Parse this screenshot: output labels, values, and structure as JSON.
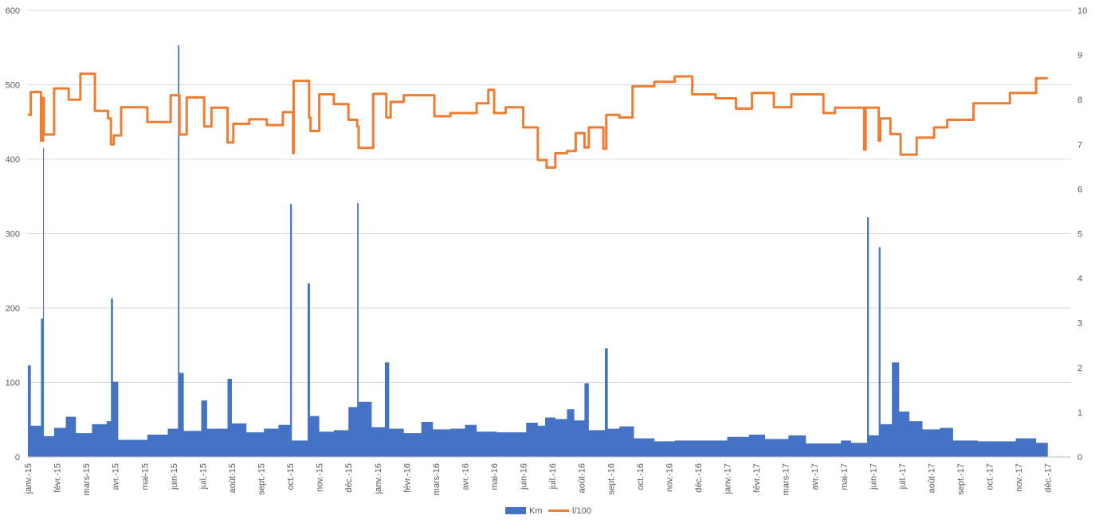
{
  "chart_data": {
    "type": "area",
    "title": "",
    "grid": true,
    "legend_placement": "bottom",
    "y_left": {
      "min": 0,
      "max": 600,
      "ticks": [
        0,
        100,
        200,
        300,
        400,
        500,
        600
      ]
    },
    "y_right": {
      "min": 0,
      "max": 10,
      "ticks": [
        0,
        1,
        2,
        3,
        4,
        5,
        6,
        7,
        8,
        9,
        10
      ]
    },
    "x_months": [
      "janv.-15",
      "févr.-15",
      "mars-15",
      "avr.-15",
      "mai-15",
      "juin-15",
      "juil.-15",
      "août-15",
      "sept.-15",
      "oct.-15",
      "nov.-15",
      "déc.-15",
      "janv.-16",
      "févr.-16",
      "mars-16",
      "avr.-16",
      "mai-16",
      "juin-16",
      "juil.-16",
      "août-16",
      "sept.-16",
      "oct.-16",
      "nov.-16",
      "déc.-16",
      "janv.-17",
      "févr.-17",
      "mars-17",
      "avr.-17",
      "mai-17",
      "juin-17",
      "juil.-17",
      "août-17",
      "sept.-17",
      "oct.-17",
      "nov.-17",
      "déc.-17"
    ],
    "x_max_month": 35.8,
    "series": [
      {
        "name": "Km",
        "type": "area",
        "axis": "left",
        "color": "#4472C4",
        "points": [
          [
            0,
            123
          ],
          [
            0.1,
            123
          ],
          [
            0.1,
            42
          ],
          [
            0.45,
            42
          ],
          [
            0.45,
            186
          ],
          [
            0.52,
            186
          ],
          [
            0.52,
            415
          ],
          [
            0.55,
            415
          ],
          [
            0.55,
            28
          ],
          [
            0.9,
            28
          ],
          [
            0.9,
            39
          ],
          [
            1.3,
            39
          ],
          [
            1.3,
            54
          ],
          [
            1.65,
            54
          ],
          [
            1.65,
            32
          ],
          [
            2.2,
            32
          ],
          [
            2.2,
            44
          ],
          [
            2.7,
            44
          ],
          [
            2.7,
            48
          ],
          [
            2.85,
            48
          ],
          [
            2.85,
            213
          ],
          [
            2.92,
            213
          ],
          [
            2.92,
            101
          ],
          [
            3.1,
            101
          ],
          [
            3.1,
            23
          ],
          [
            4.1,
            23
          ],
          [
            4.1,
            30
          ],
          [
            4.8,
            30
          ],
          [
            4.8,
            38
          ],
          [
            5.15,
            38
          ],
          [
            5.15,
            553
          ],
          [
            5.2,
            553
          ],
          [
            5.2,
            113
          ],
          [
            5.35,
            113
          ],
          [
            5.35,
            35
          ],
          [
            5.95,
            35
          ],
          [
            5.95,
            76
          ],
          [
            6.15,
            76
          ],
          [
            6.15,
            38
          ],
          [
            6.85,
            38
          ],
          [
            6.85,
            105
          ],
          [
            7.0,
            105
          ],
          [
            7.0,
            45
          ],
          [
            7.5,
            45
          ],
          [
            7.5,
            33
          ],
          [
            8.1,
            33
          ],
          [
            8.1,
            38
          ],
          [
            8.6,
            38
          ],
          [
            8.6,
            43
          ],
          [
            9.0,
            43
          ],
          [
            9.0,
            340
          ],
          [
            9.06,
            340
          ],
          [
            9.06,
            22
          ],
          [
            9.6,
            22
          ],
          [
            9.6,
            233
          ],
          [
            9.68,
            233
          ],
          [
            9.68,
            55
          ],
          [
            10.0,
            55
          ],
          [
            10.0,
            34
          ],
          [
            10.5,
            34
          ],
          [
            10.5,
            36
          ],
          [
            11.0,
            36
          ],
          [
            11.0,
            67
          ],
          [
            11.3,
            67
          ],
          [
            11.3,
            341
          ],
          [
            11.35,
            341
          ],
          [
            11.35,
            74
          ],
          [
            11.8,
            74
          ],
          [
            11.8,
            40
          ],
          [
            12.25,
            40
          ],
          [
            12.25,
            127
          ],
          [
            12.4,
            127
          ],
          [
            12.4,
            38
          ],
          [
            12.9,
            38
          ],
          [
            12.9,
            32
          ],
          [
            13.5,
            32
          ],
          [
            13.5,
            47
          ],
          [
            13.9,
            47
          ],
          [
            13.9,
            37
          ],
          [
            14.5,
            37
          ],
          [
            14.5,
            38
          ],
          [
            15.0,
            38
          ],
          [
            15.0,
            43
          ],
          [
            15.4,
            43
          ],
          [
            15.4,
            34
          ],
          [
            16.1,
            34
          ],
          [
            16.1,
            33
          ],
          [
            17.1,
            33
          ],
          [
            17.1,
            46
          ],
          [
            17.5,
            46
          ],
          [
            17.5,
            42
          ],
          [
            17.75,
            42
          ],
          [
            17.75,
            53
          ],
          [
            18.1,
            53
          ],
          [
            18.1,
            51
          ],
          [
            18.5,
            51
          ],
          [
            18.5,
            64
          ],
          [
            18.75,
            64
          ],
          [
            18.75,
            49
          ],
          [
            19.1,
            49
          ],
          [
            19.1,
            99
          ],
          [
            19.25,
            99
          ],
          [
            19.25,
            36
          ],
          [
            19.8,
            36
          ],
          [
            19.8,
            146
          ],
          [
            19.9,
            146
          ],
          [
            19.9,
            38
          ],
          [
            20.3,
            38
          ],
          [
            20.3,
            41
          ],
          [
            20.8,
            41
          ],
          [
            20.8,
            25
          ],
          [
            21.5,
            25
          ],
          [
            21.5,
            21
          ],
          [
            22.2,
            21
          ],
          [
            22.2,
            22
          ],
          [
            24.0,
            22
          ],
          [
            24.0,
            27
          ],
          [
            24.75,
            27
          ],
          [
            24.75,
            30
          ],
          [
            25.3,
            30
          ],
          [
            25.3,
            24
          ],
          [
            26.1,
            24
          ],
          [
            26.1,
            29
          ],
          [
            26.7,
            29
          ],
          [
            26.7,
            18
          ],
          [
            27.9,
            18
          ],
          [
            27.9,
            22
          ],
          [
            28.25,
            22
          ],
          [
            28.25,
            19
          ],
          [
            28.8,
            19
          ],
          [
            28.8,
            322
          ],
          [
            28.86,
            322
          ],
          [
            28.86,
            29
          ],
          [
            29.2,
            29
          ],
          [
            29.2,
            282
          ],
          [
            29.26,
            282
          ],
          [
            29.26,
            44
          ],
          [
            29.65,
            44
          ],
          [
            29.65,
            127
          ],
          [
            29.9,
            127
          ],
          [
            29.9,
            61
          ],
          [
            30.25,
            61
          ],
          [
            30.25,
            48
          ],
          [
            30.7,
            48
          ],
          [
            30.7,
            37
          ],
          [
            31.3,
            37
          ],
          [
            31.3,
            39
          ],
          [
            31.75,
            39
          ],
          [
            31.75,
            22
          ],
          [
            32.6,
            22
          ],
          [
            32.6,
            21
          ],
          [
            33.9,
            21
          ],
          [
            33.9,
            25
          ],
          [
            34.6,
            25
          ],
          [
            34.6,
            19
          ],
          [
            35.0,
            19
          ]
        ]
      },
      {
        "name": "l/100",
        "type": "line",
        "axis": "right",
        "color": "#ED7D31",
        "points": [
          [
            0,
            7.66
          ],
          [
            0.1,
            7.66
          ],
          [
            0.1,
            8.17
          ],
          [
            0.45,
            8.17
          ],
          [
            0.45,
            7.08
          ],
          [
            0.52,
            7.08
          ],
          [
            0.52,
            8.04
          ],
          [
            0.55,
            8.04
          ],
          [
            0.55,
            7.22
          ],
          [
            0.9,
            7.22
          ],
          [
            0.9,
            8.25
          ],
          [
            1.4,
            8.25
          ],
          [
            1.4,
            8.0
          ],
          [
            1.8,
            8.0
          ],
          [
            1.8,
            8.58
          ],
          [
            2.3,
            8.58
          ],
          [
            2.3,
            7.75
          ],
          [
            2.75,
            7.75
          ],
          [
            2.75,
            7.58
          ],
          [
            2.85,
            7.58
          ],
          [
            2.85,
            7.0
          ],
          [
            2.95,
            7.0
          ],
          [
            2.95,
            7.2
          ],
          [
            3.2,
            7.2
          ],
          [
            3.2,
            7.83
          ],
          [
            4.1,
            7.83
          ],
          [
            4.1,
            7.5
          ],
          [
            4.9,
            7.5
          ],
          [
            4.9,
            8.1
          ],
          [
            5.2,
            8.1
          ],
          [
            5.2,
            7.22
          ],
          [
            5.45,
            7.22
          ],
          [
            5.45,
            8.05
          ],
          [
            6.05,
            8.05
          ],
          [
            6.05,
            7.4
          ],
          [
            6.3,
            7.4
          ],
          [
            6.3,
            7.82
          ],
          [
            6.85,
            7.82
          ],
          [
            6.85,
            7.04
          ],
          [
            7.05,
            7.04
          ],
          [
            7.05,
            7.46
          ],
          [
            7.6,
            7.46
          ],
          [
            7.6,
            7.56
          ],
          [
            8.2,
            7.56
          ],
          [
            8.2,
            7.43
          ],
          [
            8.75,
            7.43
          ],
          [
            8.75,
            7.72
          ],
          [
            9.1,
            7.72
          ],
          [
            9.1,
            6.8
          ],
          [
            9.12,
            6.8
          ],
          [
            9.12,
            8.42
          ],
          [
            9.65,
            8.42
          ],
          [
            9.65,
            7.6
          ],
          [
            9.7,
            7.6
          ],
          [
            9.7,
            7.3
          ],
          [
            10.0,
            7.3
          ],
          [
            10.0,
            8.12
          ],
          [
            10.5,
            8.12
          ],
          [
            10.5,
            7.9
          ],
          [
            11.0,
            7.9
          ],
          [
            11.0,
            7.55
          ],
          [
            11.3,
            7.55
          ],
          [
            11.3,
            7.4
          ],
          [
            11.35,
            7.4
          ],
          [
            11.35,
            6.92
          ],
          [
            11.85,
            6.92
          ],
          [
            11.85,
            8.13
          ],
          [
            12.3,
            8.13
          ],
          [
            12.3,
            7.6
          ],
          [
            12.45,
            7.6
          ],
          [
            12.45,
            7.95
          ],
          [
            12.9,
            7.95
          ],
          [
            12.9,
            8.1
          ],
          [
            13.95,
            8.1
          ],
          [
            13.95,
            7.63
          ],
          [
            14.5,
            7.63
          ],
          [
            14.5,
            7.7
          ],
          [
            15.4,
            7.7
          ],
          [
            15.4,
            7.92
          ],
          [
            15.8,
            7.92
          ],
          [
            15.8,
            8.22
          ],
          [
            16.0,
            8.22
          ],
          [
            16.0,
            7.7
          ],
          [
            16.4,
            7.7
          ],
          [
            16.4,
            7.83
          ],
          [
            17.0,
            7.83
          ],
          [
            17.0,
            7.38
          ],
          [
            17.5,
            7.38
          ],
          [
            17.5,
            6.65
          ],
          [
            17.8,
            6.65
          ],
          [
            17.8,
            6.48
          ],
          [
            18.1,
            6.48
          ],
          [
            18.1,
            6.8
          ],
          [
            18.5,
            6.8
          ],
          [
            18.5,
            6.85
          ],
          [
            18.8,
            6.85
          ],
          [
            18.8,
            7.25
          ],
          [
            19.1,
            7.25
          ],
          [
            19.1,
            6.93
          ],
          [
            19.25,
            6.93
          ],
          [
            19.25,
            7.38
          ],
          [
            19.75,
            7.38
          ],
          [
            19.75,
            6.9
          ],
          [
            19.85,
            6.9
          ],
          [
            19.85,
            7.66
          ],
          [
            20.3,
            7.66
          ],
          [
            20.3,
            7.6
          ],
          [
            20.75,
            7.6
          ],
          [
            20.75,
            8.3
          ],
          [
            21.5,
            8.3
          ],
          [
            21.5,
            8.4
          ],
          [
            22.2,
            8.4
          ],
          [
            22.2,
            8.52
          ],
          [
            22.8,
            8.52
          ],
          [
            22.8,
            8.12
          ],
          [
            23.6,
            8.12
          ],
          [
            23.6,
            8.03
          ],
          [
            24.3,
            8.03
          ],
          [
            24.3,
            7.8
          ],
          [
            24.85,
            7.8
          ],
          [
            24.85,
            8.15
          ],
          [
            25.6,
            8.15
          ],
          [
            25.6,
            7.83
          ],
          [
            26.2,
            7.83
          ],
          [
            26.2,
            8.12
          ],
          [
            27.3,
            8.12
          ],
          [
            27.3,
            7.7
          ],
          [
            27.7,
            7.7
          ],
          [
            27.7,
            7.82
          ],
          [
            28.7,
            7.82
          ],
          [
            28.7,
            6.88
          ],
          [
            28.75,
            6.88
          ],
          [
            28.75,
            7.82
          ],
          [
            29.2,
            7.82
          ],
          [
            29.2,
            7.08
          ],
          [
            29.25,
            7.08
          ],
          [
            29.25,
            7.58
          ],
          [
            29.6,
            7.58
          ],
          [
            29.6,
            7.23
          ],
          [
            29.95,
            7.23
          ],
          [
            29.95,
            6.77
          ],
          [
            30.5,
            6.77
          ],
          [
            30.5,
            7.15
          ],
          [
            31.1,
            7.15
          ],
          [
            31.1,
            7.38
          ],
          [
            31.55,
            7.38
          ],
          [
            31.55,
            7.55
          ],
          [
            32.45,
            7.55
          ],
          [
            32.45,
            7.92
          ],
          [
            33.7,
            7.92
          ],
          [
            33.7,
            8.15
          ],
          [
            34.6,
            8.15
          ],
          [
            34.6,
            8.48
          ],
          [
            35.0,
            8.48
          ]
        ]
      }
    ]
  }
}
